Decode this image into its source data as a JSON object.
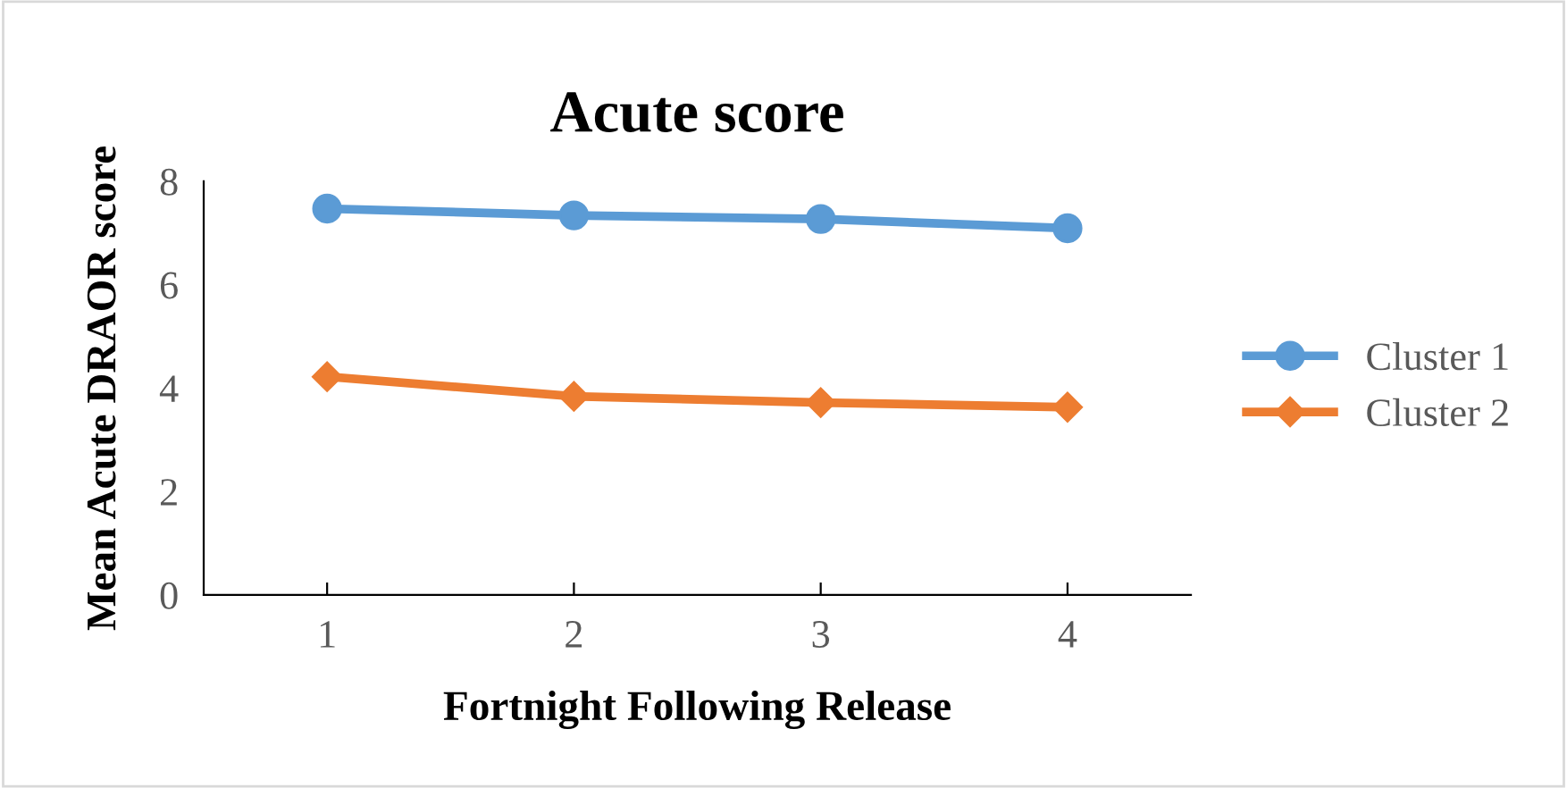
{
  "chart_data": {
    "type": "line",
    "title": "Acute score",
    "xlabel": "Fortnight Following Release",
    "ylabel": "Mean Acute DRAOR score",
    "categories": [
      "1",
      "2",
      "3",
      "4"
    ],
    "series": [
      {
        "name": "Cluster 1",
        "color": "#5b9bd5",
        "values": [
          7.47,
          7.34,
          7.27,
          7.09
        ],
        "marker": "circle"
      },
      {
        "name": "Cluster 2",
        "color": "#ed7d31",
        "values": [
          4.22,
          3.84,
          3.72,
          3.63
        ],
        "marker": "diamond"
      }
    ],
    "ylim": [
      0,
      8
    ],
    "yticks": [
      0,
      2,
      4,
      6,
      8
    ],
    "grid": false,
    "legend": "right",
    "line_style": "solid"
  }
}
